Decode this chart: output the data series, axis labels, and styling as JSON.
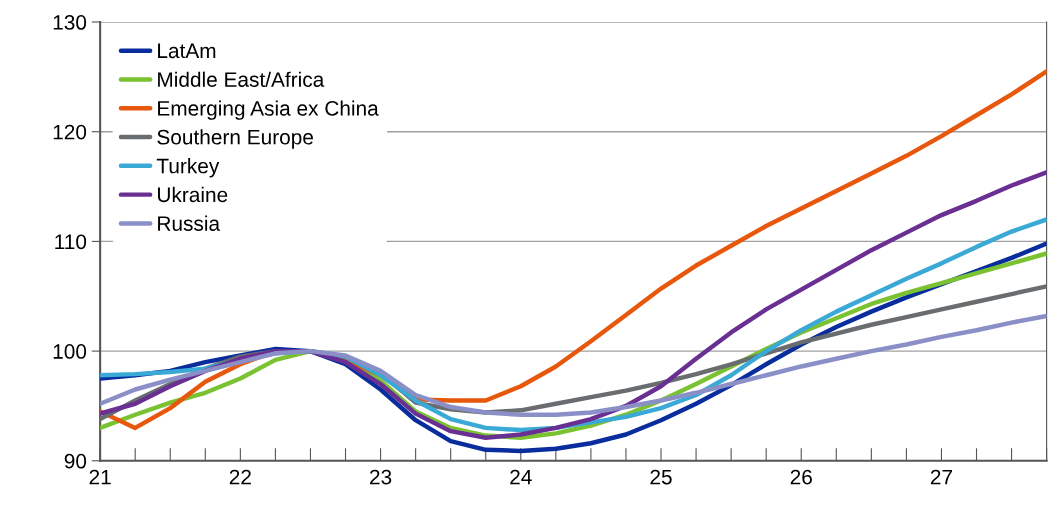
{
  "chart_data": {
    "type": "line",
    "x": [
      21,
      21.25,
      21.5,
      21.75,
      22,
      22.25,
      22.5,
      22.75,
      23,
      23.25,
      23.5,
      23.75,
      24,
      24.25,
      24.5,
      24.75,
      25,
      25.25,
      25.5,
      25.75,
      26,
      26.25,
      26.5,
      26.75,
      27,
      27.25,
      27.5,
      27.75
    ],
    "series": [
      {
        "name": "LatAm",
        "color": "#0a2d9e",
        "values": [
          97.5,
          97.8,
          98.2,
          99.0,
          99.6,
          100.2,
          100,
          98.8,
          96.5,
          93.7,
          91.8,
          91.0,
          90.9,
          91.1,
          91.6,
          92.4,
          93.7,
          95.2,
          96.9,
          98.8,
          100.6,
          102.2,
          103.6,
          104.9,
          106.1,
          107.3,
          108.5,
          109.8
        ]
      },
      {
        "name": "Middle East/Africa",
        "color": "#7ac231",
        "values": [
          93.0,
          94.2,
          95.3,
          96.2,
          97.5,
          99.2,
          100,
          99.3,
          97.3,
          94.5,
          93.0,
          92.3,
          92.1,
          92.5,
          93.2,
          94.2,
          95.5,
          97.0,
          98.6,
          100.2,
          101.7,
          103.0,
          104.3,
          105.3,
          106.2,
          107.1,
          108.0,
          108.9
        ]
      },
      {
        "name": "Emerging Asia ex China",
        "color": "#e8580c",
        "values": [
          94.5,
          93.0,
          94.8,
          97.2,
          98.8,
          100.0,
          100,
          99.2,
          97.8,
          95.6,
          95.5,
          95.5,
          96.8,
          98.6,
          100.9,
          103.3,
          105.7,
          107.8,
          109.6,
          111.4,
          113.0,
          114.6,
          116.2,
          117.8,
          119.6,
          121.5,
          123.4,
          125.5
        ]
      },
      {
        "name": "Southern Europe",
        "color": "#6a6d70",
        "values": [
          93.8,
          95.5,
          97.0,
          98.4,
          99.5,
          100.0,
          100,
          99.5,
          98.0,
          95.3,
          94.7,
          94.4,
          94.6,
          95.2,
          95.8,
          96.4,
          97.1,
          97.9,
          98.8,
          99.8,
          100.8,
          101.6,
          102.4,
          103.1,
          103.8,
          104.5,
          105.2,
          105.9
        ]
      },
      {
        "name": "Turkey",
        "color": "#3aa9d6",
        "values": [
          97.8,
          97.9,
          98.1,
          98.4,
          99.2,
          99.8,
          100,
          99.5,
          97.8,
          95.5,
          93.8,
          93.0,
          92.8,
          93.0,
          93.5,
          94.0,
          94.8,
          96.0,
          97.8,
          100.0,
          101.9,
          103.6,
          105.1,
          106.6,
          108.0,
          109.5,
          110.9,
          112.0
        ]
      },
      {
        "name": "Ukraine",
        "color": "#6a2f92",
        "values": [
          94.3,
          95.2,
          96.8,
          98.2,
          99.3,
          100.0,
          100,
          99.0,
          97.0,
          94.3,
          92.7,
          92.1,
          92.4,
          93.0,
          93.8,
          95.0,
          96.8,
          99.3,
          101.7,
          103.8,
          105.6,
          107.4,
          109.2,
          110.8,
          112.4,
          113.7,
          115.1,
          116.3
        ]
      },
      {
        "name": "Russia",
        "color": "#8b8fc8",
        "values": [
          95.2,
          96.5,
          97.4,
          98.2,
          99.0,
          99.8,
          100,
          99.6,
          98.2,
          96.0,
          94.9,
          94.4,
          94.2,
          94.2,
          94.4,
          94.9,
          95.5,
          96.2,
          97.0,
          97.8,
          98.6,
          99.3,
          100.0,
          100.6,
          101.3,
          101.9,
          102.6,
          103.2
        ]
      }
    ],
    "xlim": [
      21,
      27.75
    ],
    "xticks": [
      21,
      {
        "value": 21.25,
        "label": null
      },
      {
        "value": 21.5,
        "label": null
      },
      {
        "value": 21.75,
        "label": null
      },
      22,
      {
        "value": 22.25,
        "label": null
      },
      {
        "value": 22.5,
        "label": null
      },
      {
        "value": 22.75,
        "label": null
      },
      23,
      {
        "value": 23.25,
        "label": null
      },
      {
        "value": 23.5,
        "label": null
      },
      {
        "value": 23.75,
        "label": null
      },
      24,
      {
        "value": 24.25,
        "label": null
      },
      {
        "value": 24.5,
        "label": null
      },
      {
        "value": 24.75,
        "label": null
      },
      25,
      {
        "value": 25.25,
        "label": null
      },
      {
        "value": 25.5,
        "label": null
      },
      {
        "value": 25.75,
        "label": null
      },
      26,
      {
        "value": 26.25,
        "label": null
      },
      {
        "value": 26.5,
        "label": null
      },
      {
        "value": 26.75,
        "label": null
      },
      27,
      {
        "value": 27.25,
        "label": null
      },
      {
        "value": 27.5,
        "label": null
      },
      {
        "value": 27.75,
        "label": null
      }
    ],
    "ylim": [
      90,
      130
    ],
    "yticks": [
      90,
      100,
      110,
      120,
      130
    ],
    "grid": "y",
    "legend": "top left",
    "marker": "none",
    "line_style": "solid"
  }
}
